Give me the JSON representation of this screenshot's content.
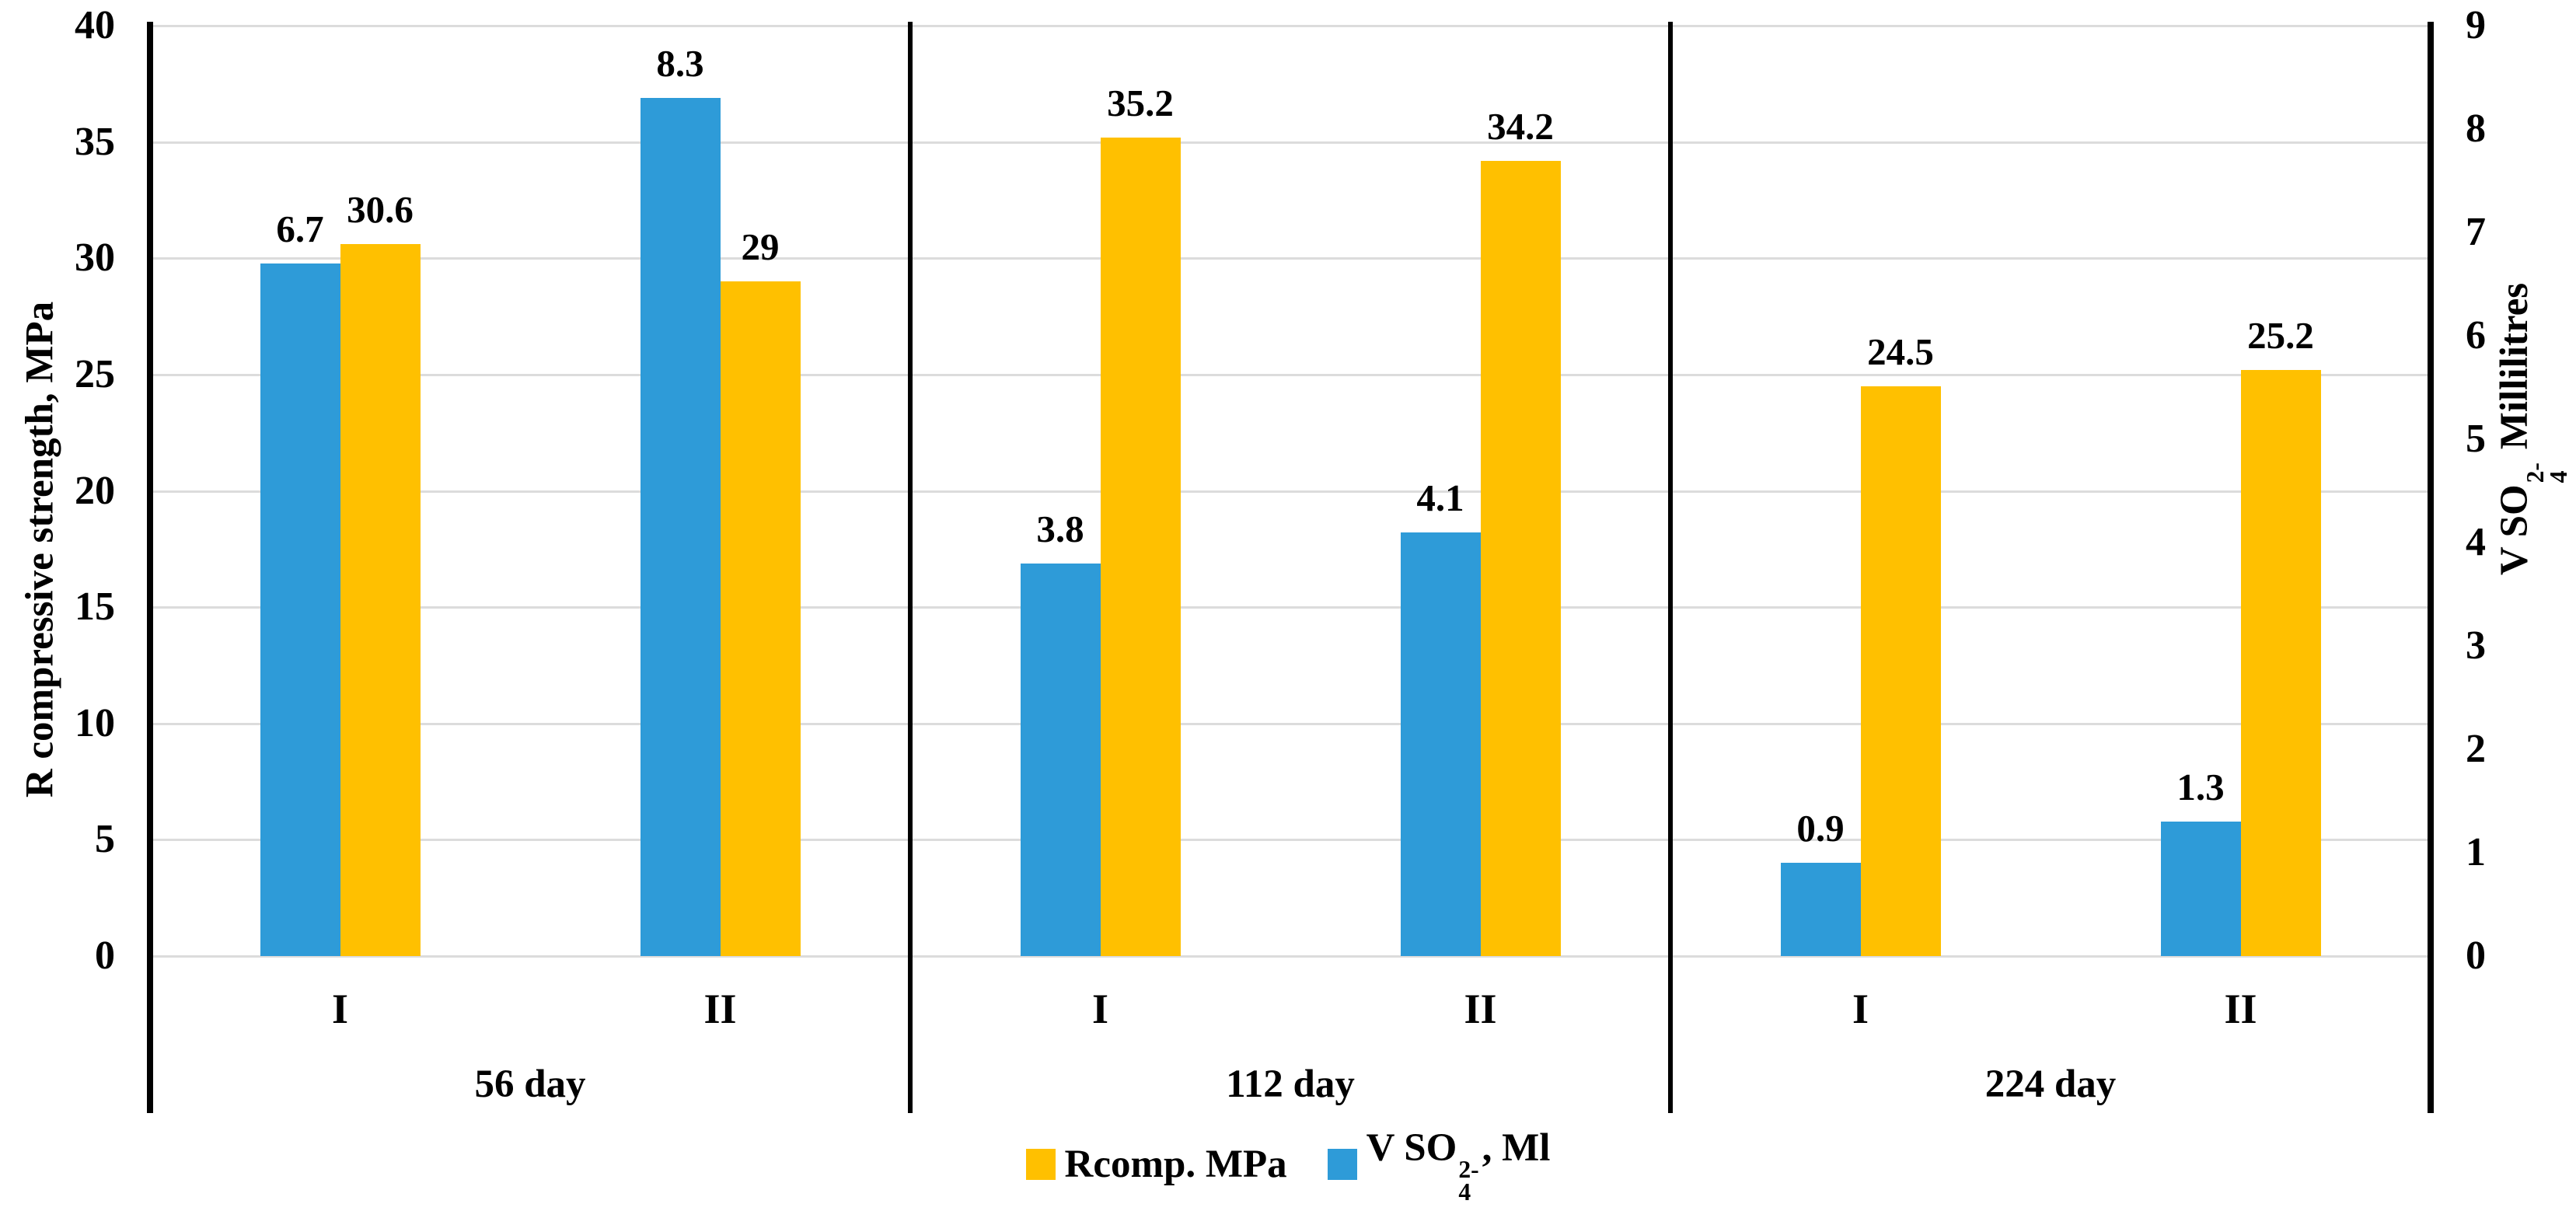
{
  "chart_data": {
    "type": "bar",
    "title": "",
    "groups": [
      {
        "label": "56 day"
      },
      {
        "label": "112 day"
      },
      {
        "label": "224 day"
      }
    ],
    "categories": [
      "I",
      "II",
      "I",
      "II",
      "I",
      "II"
    ],
    "group_of_category": [
      0,
      0,
      1,
      1,
      2,
      2
    ],
    "series": [
      {
        "name": "V SO4 2-, Ml",
        "axis": "right",
        "color": "#2E9BD8",
        "values": [
          6.7,
          8.3,
          3.8,
          4.1,
          0.9,
          1.3
        ],
        "value_labels": [
          "6.7",
          "8.3",
          "3.8",
          "4.1",
          "0.9",
          "1.3"
        ]
      },
      {
        "name": "Rcomp. MPa",
        "axis": "left",
        "color": "#FFC000",
        "values": [
          30.6,
          29,
          35.2,
          34.2,
          24.5,
          25.2
        ],
        "value_labels": [
          "30.6",
          "29",
          "35.2",
          "34.2",
          "24.5",
          "25.2"
        ]
      }
    ],
    "left_axis": {
      "label": "R compressive strength, MPa",
      "min": 0,
      "max": 40,
      "step": 5,
      "ticks": [
        "0",
        "5",
        "10",
        "15",
        "20",
        "25",
        "30",
        "35",
        "40"
      ]
    },
    "right_axis": {
      "label_parts": {
        "prefix": "V SO",
        "sub": "4",
        "sup": "2-",
        "suffix": " Millilitres"
      },
      "min": 0,
      "max": 9,
      "step": 1,
      "ticks": [
        "0",
        "1",
        "2",
        "3",
        "4",
        "5",
        "6",
        "7",
        "8",
        "9"
      ]
    },
    "legend": [
      {
        "color": "#FFC000",
        "text": {
          "prefix": "Rcomp. MPa",
          "sub": "",
          "sup": "",
          "suffix": ""
        }
      },
      {
        "color": "#2E9BD8",
        "text": {
          "prefix": "V SO",
          "sub": "4",
          "sup": "2-",
          "suffix": ", Ml"
        }
      }
    ],
    "grid": {
      "on": true,
      "color": "#DCDCDC",
      "legend_position": "bottom"
    }
  }
}
